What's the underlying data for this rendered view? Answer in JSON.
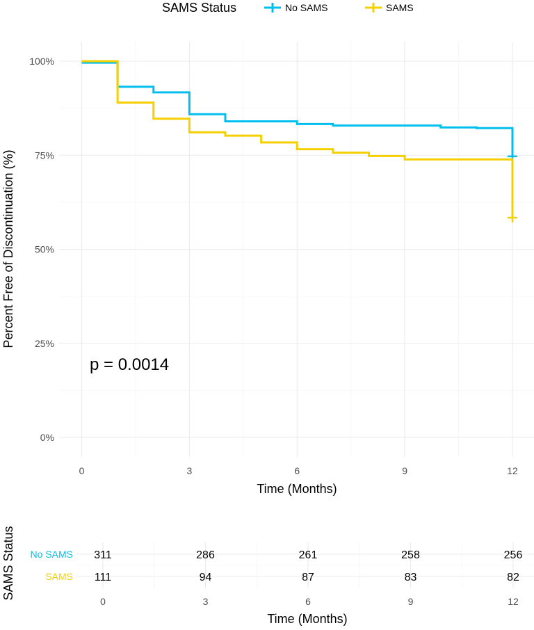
{
  "chart_data": [
    {
      "type": "line",
      "subtype": "kaplan-meier-step",
      "xlabel": "Time (Months)",
      "ylabel": "Percent Free of Discontinuation (%)",
      "xlim": [
        0,
        12
      ],
      "ylim": [
        0,
        1
      ],
      "x_ticks": [
        0,
        3,
        6,
        9,
        12
      ],
      "y_ticks": [
        0,
        0.25,
        0.5,
        0.75,
        1.0
      ],
      "y_tick_labels": [
        "0%",
        "25%",
        "50%",
        "75%",
        "100%"
      ],
      "grid": true,
      "legend": {
        "title": "SAMS Status",
        "placement": "top",
        "entries": [
          "No SAMS",
          "SAMS"
        ]
      },
      "annotation": "p = 0.0014",
      "series": [
        {
          "name": "No SAMS",
          "color": "#00BFEF",
          "x": [
            0,
            1,
            2,
            3,
            4,
            6,
            7,
            10,
            11,
            12
          ],
          "y": [
            0.996,
            0.932,
            0.917,
            0.859,
            0.84,
            0.833,
            0.829,
            0.824,
            0.822,
            0.747
          ],
          "censor_x": [
            12
          ],
          "censor_y": [
            0.747
          ]
        },
        {
          "name": "SAMS",
          "color": "#F5D000",
          "x": [
            0,
            1,
            2,
            3,
            4,
            5,
            6,
            7,
            8,
            9,
            12
          ],
          "y": [
            1.0,
            0.89,
            0.847,
            0.811,
            0.802,
            0.784,
            0.766,
            0.757,
            0.748,
            0.739,
            0.584
          ],
          "censor_x": [
            12
          ],
          "censor_y": [
            0.584
          ]
        }
      ]
    },
    {
      "type": "table",
      "title": "SAMS Status",
      "xlabel": "Time (Months)",
      "x_ticks": [
        0,
        3,
        6,
        9,
        12
      ],
      "rows": [
        {
          "name": "No SAMS",
          "color": "#00BFEF",
          "values": [
            311,
            286,
            261,
            258,
            256
          ]
        },
        {
          "name": "SAMS",
          "color": "#F5D000",
          "values": [
            111,
            94,
            87,
            83,
            82
          ]
        }
      ]
    }
  ]
}
